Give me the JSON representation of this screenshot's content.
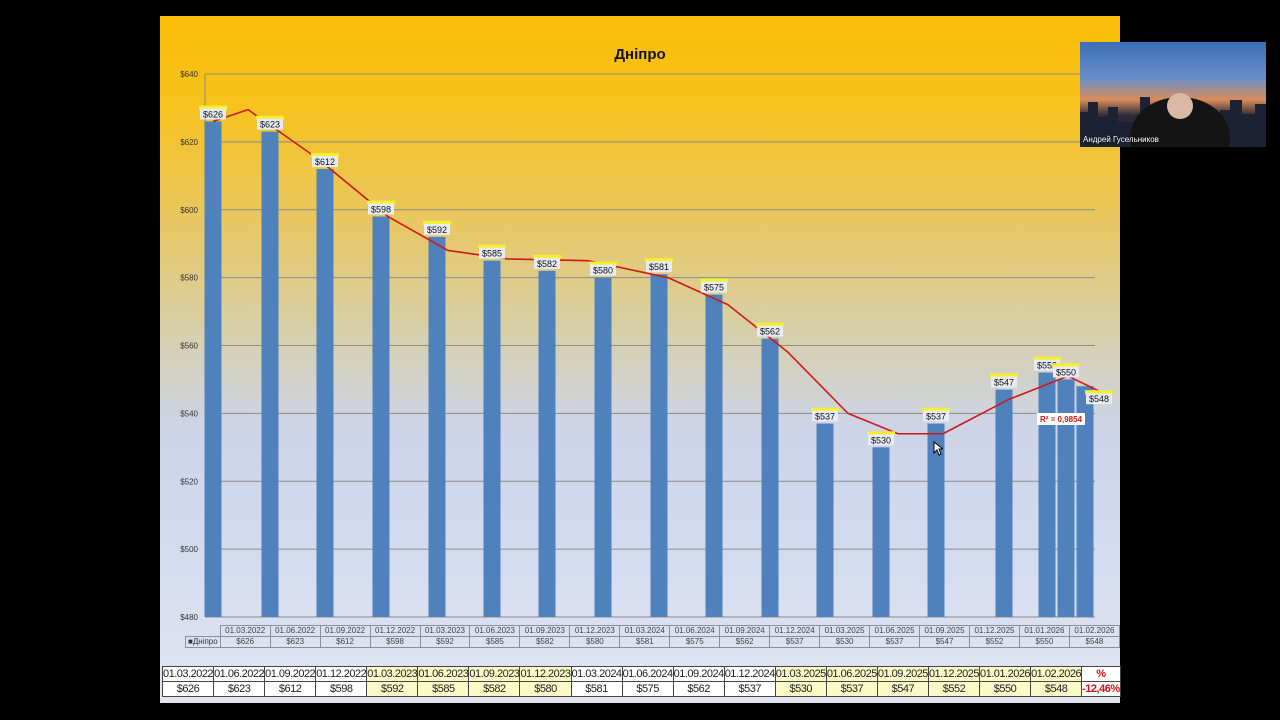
{
  "chart_data": {
    "type": "bar",
    "title": "Дніпро",
    "xlabel": "",
    "ylabel": "",
    "ylim": [
      480,
      640
    ],
    "yticks": [
      "$480",
      "$500",
      "$520",
      "$540",
      "$560",
      "$580",
      "$600",
      "$620",
      "$640"
    ],
    "grid": true,
    "legend": [
      "Дніпро"
    ],
    "categories": [
      "01.03.2022",
      "01.06.2022",
      "01.09.2022",
      "01.12.2022",
      "01.03.2023",
      "01.06.2023",
      "01.09.2023",
      "01.12.2023",
      "01.03.2024",
      "01.06.2024",
      "01.09.2024",
      "01.12.2024",
      "01.03.2025",
      "01.06.2025",
      "01.09.2025",
      "01.12.2025",
      "01.01.2026",
      "01.02.2026"
    ],
    "series": [
      {
        "name": "Дніпро",
        "values": [
          626,
          623,
          612,
          598,
          592,
          585,
          582,
          580,
          581,
          575,
          562,
          537,
          530,
          537,
          547,
          552,
          550,
          548
        ]
      }
    ],
    "bar_labels": [
      "$626",
      "$623",
      "$612",
      "$598",
      "$592",
      "$585",
      "$582",
      "$580",
      "$581",
      "$575",
      "$562",
      "$537",
      "$530",
      "$537",
      "$547",
      "$552",
      "$550",
      "$548"
    ],
    "trendline": {
      "type": "polynomial",
      "color": "#d01818",
      "r_squared_label": "R² = 0,9854"
    },
    "bar_color": "#4f81bd"
  },
  "chart_table": {
    "legend_label": "■Дніпро",
    "dates": [
      "01.03.2022",
      "01.06.2022",
      "01.09.2022",
      "01.12.2022",
      "01.03.2023",
      "01.06.2023",
      "01.09.2023",
      "01.12.2023",
      "01.03.2024",
      "01.06.2024",
      "01.09.2024",
      "01.12.2024",
      "01.03.2025",
      "01.06.2025",
      "01.09.2025",
      "01.12.2025",
      "01.01.2026",
      "01.02.2026"
    ],
    "values": [
      "$626",
      "$623",
      "$612",
      "$598",
      "$592",
      "$585",
      "$582",
      "$580",
      "$581",
      "$575",
      "$562",
      "$537",
      "$530",
      "$537",
      "$547",
      "$552",
      "$550",
      "$548"
    ]
  },
  "data_table": {
    "dates": [
      "01.03.2022",
      "01.06.2022",
      "01.09.2022",
      "01.12.2022",
      "01.03.2023",
      "01.06.2023",
      "01.09.2023",
      "01.12.2023",
      "01.03.2024",
      "01.06.2024",
      "01.09.2024",
      "01.12.2024",
      "01.03.2025",
      "01.06.2025",
      "01.09.2025",
      "01.12.2025",
      "01.01.2026",
      "01.02.2026"
    ],
    "values": [
      "$626",
      "$623",
      "$612",
      "$598",
      "$592",
      "$585",
      "$582",
      "$580",
      "$581",
      "$575",
      "$562",
      "$537",
      "$530",
      "$537",
      "$547",
      "$552",
      "$550",
      "$548"
    ],
    "highlighted": [
      false,
      false,
      false,
      false,
      true,
      true,
      true,
      true,
      false,
      false,
      false,
      false,
      true,
      true,
      true,
      true,
      true,
      true
    ],
    "pct_header": "%",
    "pct_value": "-12,46%"
  },
  "webcam": {
    "participant_name": "Андрей Гусельников"
  }
}
